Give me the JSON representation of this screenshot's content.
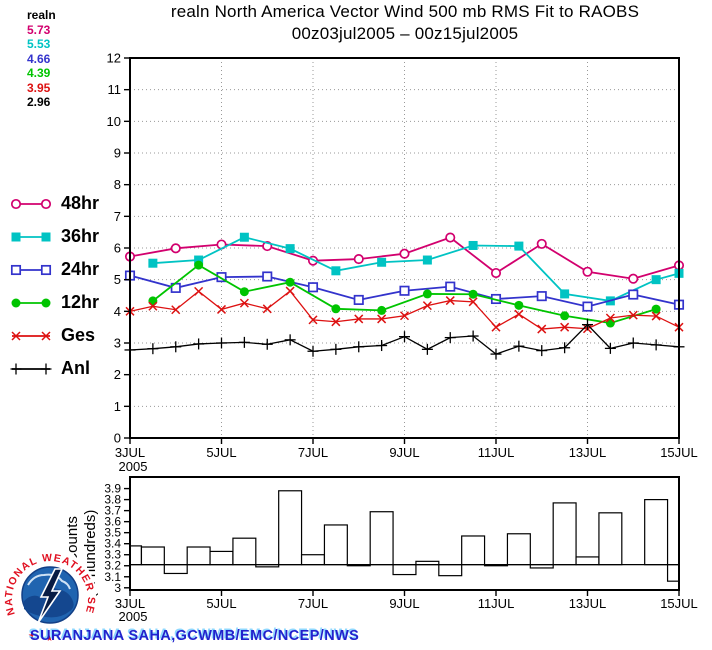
{
  "header": {
    "title_line1": "realn North America Vector Wind 500 mb RMS Fit to RAOBS",
    "title_line2": "00z03jul2005 – 00z15jul2005"
  },
  "stats_legend": {
    "title": "realn",
    "values": [
      {
        "text": "5.73",
        "color": "#d2006e"
      },
      {
        "text": "5.53",
        "color": "#00c3c3"
      },
      {
        "text": "4.66",
        "color": "#3333cc"
      },
      {
        "text": "4.39",
        "color": "#00c400"
      },
      {
        "text": "3.95",
        "color": "#dd1111"
      },
      {
        "text": "2.96",
        "color": "#000000"
      }
    ]
  },
  "series_legend": {
    "items": [
      {
        "label": "48hr",
        "color": "#d2006e",
        "marker": "circle-open"
      },
      {
        "label": "36hr",
        "color": "#00c3c3",
        "marker": "square-filled"
      },
      {
        "label": "24hr",
        "color": "#3333cc",
        "marker": "square-open"
      },
      {
        "label": "12hr",
        "color": "#00c400",
        "marker": "circle-filled"
      },
      {
        "label": "Ges",
        "color": "#dd1111",
        "marker": "x"
      },
      {
        "label": "Anl",
        "color": "#000000",
        "marker": "plus"
      }
    ]
  },
  "credit": "SURANJANA SAHA,GCWMB/EMC/NCEP/NWS",
  "logo": {
    "text": "NATIONAL WEATHER SERVICE",
    "stars": [
      "★",
      "★",
      "★"
    ]
  },
  "chart_data": [
    {
      "type": "line",
      "title": "realn North America Vector Wind 500 mb RMS Fit to RAOBS 00z03jul2005 - 00z15jul2005",
      "ylabel": "",
      "ylim": [
        0,
        12
      ],
      "ytick_labels": [
        "0",
        "1",
        "2",
        "3",
        "4",
        "5",
        "6",
        "7",
        "8",
        "9",
        "10",
        "11",
        "12"
      ],
      "grid": "dotted",
      "legend_position": "left",
      "xlim_days": [
        3,
        15
      ],
      "xtick_days": [
        3,
        5,
        7,
        9,
        11,
        13,
        15
      ],
      "xtick_labels": [
        "3JUL",
        "5JUL",
        "7JUL",
        "9JUL",
        "11JUL",
        "13JUL",
        "15JUL"
      ],
      "x_year_label": "2005",
      "grid_days": [
        5,
        7,
        9,
        11,
        13
      ],
      "series": [
        {
          "name": "48hr",
          "color": "#d2006e",
          "marker": "circle-open",
          "width": 1.8,
          "x": [
            3,
            4,
            5,
            6,
            7,
            8,
            9,
            10,
            11,
            12,
            13,
            14,
            15
          ],
          "values": [
            5.73,
            5.99,
            6.11,
            6.06,
            5.6,
            5.65,
            5.82,
            6.33,
            5.21,
            6.13,
            5.25,
            5.03,
            5.45
          ]
        },
        {
          "name": "36hr",
          "color": "#00c3c3",
          "marker": "square-filled",
          "width": 1.8,
          "x": [
            3.5,
            4.5,
            5.5,
            6.5,
            7.5,
            8.5,
            9.5,
            10.5,
            11.5,
            12.5,
            13.5,
            14.5,
            15
          ],
          "values": [
            5.52,
            5.62,
            6.34,
            5.98,
            5.28,
            5.55,
            5.62,
            6.08,
            6.06,
            4.55,
            4.33,
            5.0,
            5.2
          ]
        },
        {
          "name": "24hr",
          "color": "#3333cc",
          "marker": "square-open",
          "width": 1.8,
          "x": [
            3,
            4,
            5,
            6,
            7,
            8,
            9,
            10,
            11,
            12,
            13,
            14,
            15
          ],
          "values": [
            5.13,
            4.74,
            5.08,
            5.1,
            4.76,
            4.36,
            4.65,
            4.78,
            4.39,
            4.48,
            4.15,
            4.53,
            4.21
          ]
        },
        {
          "name": "12hr",
          "color": "#00c400",
          "marker": "circle-filled",
          "width": 1.8,
          "x": [
            3.5,
            4.5,
            5.5,
            6.5,
            7.5,
            8.5,
            9.5,
            10.5,
            11.5,
            12.5,
            13.5,
            14.5
          ],
          "values": [
            4.33,
            5.46,
            4.62,
            4.92,
            4.08,
            4.03,
            4.55,
            4.54,
            4.19,
            3.86,
            3.63,
            4.07
          ]
        },
        {
          "name": "Ges",
          "color": "#dd1111",
          "marker": "x",
          "width": 1.3,
          "x": [
            3,
            3.5,
            4,
            4.5,
            5,
            5.5,
            6,
            6.5,
            7,
            7.5,
            8,
            8.5,
            9,
            9.5,
            10,
            10.5,
            11,
            11.5,
            12,
            12.5,
            13,
            13.5,
            14,
            14.5,
            15
          ],
          "values": [
            4.0,
            4.16,
            4.05,
            4.63,
            4.06,
            4.26,
            4.08,
            4.64,
            3.73,
            3.67,
            3.76,
            3.76,
            3.86,
            4.18,
            4.34,
            4.3,
            3.5,
            3.91,
            3.44,
            3.5,
            3.45,
            3.79,
            3.88,
            3.85,
            3.5
          ]
        },
        {
          "name": "Anl",
          "color": "#000000",
          "marker": "plus",
          "width": 1.3,
          "x": [
            3,
            3.5,
            4,
            4.5,
            5,
            5.5,
            6,
            6.5,
            7,
            7.5,
            8,
            8.5,
            9,
            9.5,
            10,
            10.5,
            11,
            11.5,
            12,
            12.5,
            13,
            13.5,
            14,
            14.5,
            15
          ],
          "values": [
            2.78,
            2.82,
            2.88,
            2.97,
            3.0,
            3.02,
            2.96,
            3.1,
            2.74,
            2.8,
            2.88,
            2.92,
            3.2,
            2.8,
            3.17,
            3.22,
            2.65,
            2.9,
            2.76,
            2.85,
            3.58,
            2.83,
            3.0,
            2.94,
            2.88
          ]
        }
      ],
      "mean_values": {
        "48hr": 5.73,
        "36hr": 5.53,
        "24hr": 4.66,
        "12hr": 4.39,
        "Ges": 3.95,
        "Anl": 2.96
      }
    },
    {
      "type": "bar",
      "ylabel_line1": "ı Counts",
      "ylabel_line2": "(in hundreds)",
      "ylim": [
        3.0,
        4.0
      ],
      "yticks": [
        3.0,
        3.1,
        3.2,
        3.3,
        3.4,
        3.5,
        3.6,
        3.7,
        3.8,
        3.9
      ],
      "ytick_labels": [
        "3",
        "3.1",
        "3.2",
        "3.3",
        "3.4",
        "3.5",
        "3.6",
        "3.7",
        "3.8",
        "3.9"
      ],
      "baseline": 3.21,
      "bar_fill": "#ffffff",
      "bar_stroke": "#000000",
      "x_days": [
        3,
        3.5,
        4,
        4.5,
        5,
        5.5,
        6,
        6.5,
        7,
        7.5,
        8,
        8.5,
        9,
        9.5,
        10,
        10.5,
        11,
        11.5,
        12,
        12.5,
        13,
        13.5,
        14,
        14.5,
        15
      ],
      "values": [
        3.38,
        3.37,
        3.13,
        3.37,
        3.33,
        3.45,
        3.19,
        3.88,
        3.3,
        3.57,
        3.2,
        3.69,
        3.12,
        3.24,
        3.11,
        3.47,
        3.2,
        3.49,
        3.18,
        3.77,
        3.28,
        3.68,
        3.21,
        3.8,
        3.06
      ],
      "xtick_days": [
        3,
        5,
        7,
        9,
        11,
        13,
        15
      ],
      "xtick_labels": [
        "3JUL",
        "5JUL",
        "7JUL",
        "9JUL",
        "11JUL",
        "13JUL",
        "15JUL"
      ],
      "x_year_label": "2005"
    }
  ]
}
